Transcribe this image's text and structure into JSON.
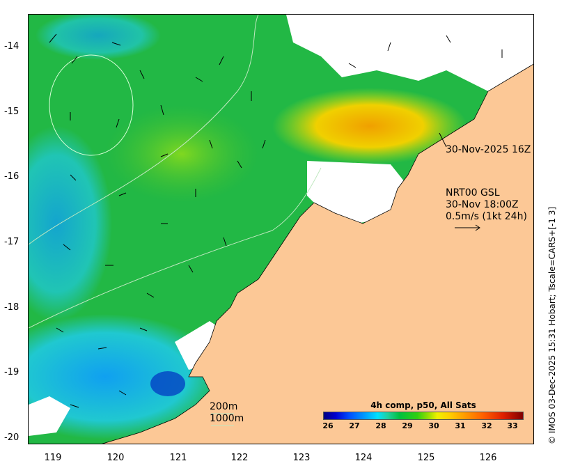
{
  "map": {
    "lat_labels": [
      "-14",
      "-15",
      "-16",
      "-17",
      "-18",
      "-19",
      "-20"
    ],
    "lon_labels": [
      "119",
      "120",
      "121",
      "122",
      "123",
      "124",
      "125",
      "126"
    ],
    "track_label": "30-Nov-2025 16Z",
    "current_info": {
      "line1": "NRT00 GSL",
      "line2": "30-Nov 18:00Z",
      "line3": "0.5m/s (1kt 24h)"
    },
    "depth_legend": [
      "200m",
      "1000m"
    ],
    "colorbar": {
      "title": "4h comp, p50, All Sats",
      "ticks": [
        "26",
        "27",
        "28",
        "29",
        "30",
        "31",
        "32",
        "33"
      ]
    },
    "credit": "© IMOS 03-Dec-2025 15:31 Hobart; Tscale=CARS+[-1 3]",
    "colors": {
      "land": "#fcc896",
      "cloud": "#ffffff",
      "sea_main": "#20c040"
    }
  }
}
